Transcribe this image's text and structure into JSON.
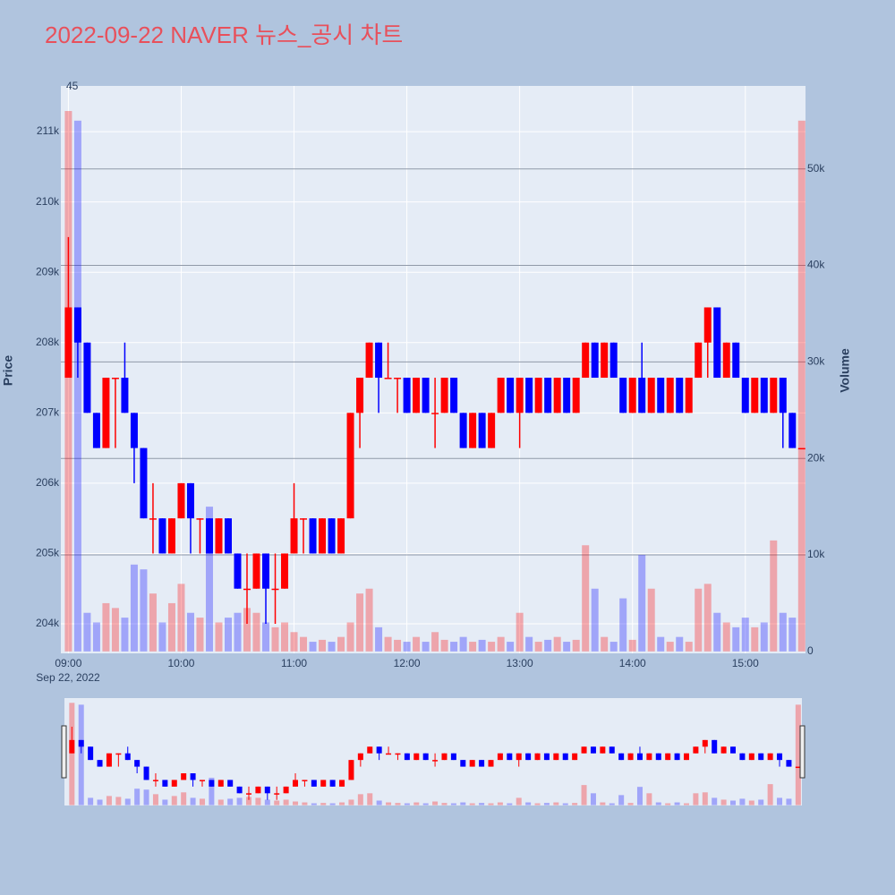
{
  "chart_data": {
    "type": "candlestick",
    "title": "2022-09-22 NAVER 뉴스_공시 차트",
    "y_label": "Price",
    "y2_label": "Volume",
    "annotation": "45",
    "x_date_label": "Sep 22, 2022",
    "increasing_color": "#ff0000",
    "decreasing_color": "#0000ff",
    "x": [
      "2022-09-22 09:00",
      "2022-09-22 09:05",
      "2022-09-22 09:10",
      "2022-09-22 09:15",
      "2022-09-22 09:20",
      "2022-09-22 09:25",
      "2022-09-22 09:30",
      "2022-09-22 09:35",
      "2022-09-22 09:40",
      "2022-09-22 09:45",
      "2022-09-22 09:50",
      "2022-09-22 09:55",
      "2022-09-22 10:00",
      "2022-09-22 10:05",
      "2022-09-22 10:10",
      "2022-09-22 10:15",
      "2022-09-22 10:20",
      "2022-09-22 10:25",
      "2022-09-22 10:30",
      "2022-09-22 10:35",
      "2022-09-22 10:40",
      "2022-09-22 10:45",
      "2022-09-22 10:50",
      "2022-09-22 10:55",
      "2022-09-22 11:00",
      "2022-09-22 11:05",
      "2022-09-22 11:10",
      "2022-09-22 11:15",
      "2022-09-22 11:20",
      "2022-09-22 11:25",
      "2022-09-22 11:30",
      "2022-09-22 11:35",
      "2022-09-22 11:40",
      "2022-09-22 11:45",
      "2022-09-22 11:50",
      "2022-09-22 11:55",
      "2022-09-22 12:00",
      "2022-09-22 12:05",
      "2022-09-22 12:10",
      "2022-09-22 12:15",
      "2022-09-22 12:20",
      "2022-09-22 12:25",
      "2022-09-22 12:30",
      "2022-09-22 12:35",
      "2022-09-22 12:40",
      "2022-09-22 12:45",
      "2022-09-22 12:50",
      "2022-09-22 12:55",
      "2022-09-22 13:00",
      "2022-09-22 13:05",
      "2022-09-22 13:10",
      "2022-09-22 13:15",
      "2022-09-22 13:20",
      "2022-09-22 13:25",
      "2022-09-22 13:30",
      "2022-09-22 13:35",
      "2022-09-22 13:40",
      "2022-09-22 13:45",
      "2022-09-22 13:50",
      "2022-09-22 13:55",
      "2022-09-22 14:00",
      "2022-09-22 14:05",
      "2022-09-22 14:10",
      "2022-09-22 14:15",
      "2022-09-22 14:20",
      "2022-09-22 14:25",
      "2022-09-22 14:30",
      "2022-09-22 14:35",
      "2022-09-22 14:40",
      "2022-09-22 14:45",
      "2022-09-22 14:50",
      "2022-09-22 14:55",
      "2022-09-22 15:00",
      "2022-09-22 15:05",
      "2022-09-22 15:10",
      "2022-09-22 15:15",
      "2022-09-22 15:20",
      "2022-09-22 15:25",
      "2022-09-22 15:30"
    ],
    "open": [
      207500,
      208500,
      208000,
      207000,
      206500,
      207500,
      207500,
      207000,
      206500,
      205500,
      205500,
      205000,
      205500,
      206000,
      205500,
      205500,
      205000,
      205500,
      205000,
      204500,
      204500,
      205000,
      204500,
      204500,
      205000,
      205500,
      205500,
      205000,
      205500,
      205000,
      205500,
      207000,
      207500,
      208000,
      207500,
      207500,
      207500,
      207000,
      207500,
      207000,
      207000,
      207500,
      207000,
      206500,
      207000,
      206500,
      207000,
      207500,
      207000,
      207500,
      207000,
      207500,
      207000,
      207500,
      207000,
      207500,
      208000,
      207500,
      208000,
      207500,
      207000,
      207500,
      207000,
      207500,
      207000,
      207500,
      207000,
      207500,
      208000,
      208500,
      207500,
      208000,
      207500,
      207000,
      207500,
      207000,
      207500,
      207000,
      206500
    ],
    "high": [
      209500,
      208500,
      208000,
      207000,
      207500,
      207500,
      208000,
      207000,
      206500,
      206000,
      205500,
      205500,
      206000,
      206000,
      205500,
      205500,
      205500,
      205500,
      205000,
      205000,
      205000,
      205000,
      205000,
      205000,
      206000,
      205500,
      205500,
      205500,
      205500,
      205500,
      207000,
      207500,
      208000,
      208000,
      208000,
      207500,
      207500,
      207500,
      207500,
      207500,
      207500,
      207500,
      207000,
      207000,
      207000,
      207000,
      207500,
      207500,
      207500,
      207500,
      207500,
      207500,
      207500,
      207500,
      207500,
      208000,
      208000,
      208000,
      208000,
      207500,
      207500,
      208000,
      207500,
      207500,
      207500,
      207500,
      207500,
      208000,
      208500,
      208500,
      208000,
      208000,
      207500,
      207500,
      207500,
      207500,
      207500,
      207000,
      206500
    ],
    "low": [
      207500,
      207500,
      207000,
      206500,
      206500,
      206500,
      207000,
      206000,
      205500,
      205000,
      205000,
      205000,
      205500,
      205000,
      205000,
      205000,
      205000,
      205000,
      204500,
      204000,
      204500,
      204000,
      204000,
      204500,
      205000,
      205000,
      205000,
      205000,
      205000,
      205000,
      205500,
      206500,
      207500,
      207000,
      207500,
      207000,
      207000,
      207000,
      207000,
      206500,
      207000,
      207000,
      206500,
      206500,
      206500,
      206500,
      207000,
      207000,
      206500,
      207000,
      207000,
      207000,
      207000,
      207000,
      207000,
      207500,
      207500,
      207500,
      207500,
      207000,
      207000,
      207000,
      207000,
      207000,
      207000,
      207000,
      207000,
      207500,
      207500,
      207500,
      207500,
      207500,
      207000,
      207000,
      207000,
      207000,
      206500,
      206500,
      206500
    ],
    "close": [
      208500,
      208000,
      207000,
      206500,
      207500,
      207500,
      207000,
      206500,
      205500,
      205500,
      205000,
      205500,
      206000,
      205500,
      205500,
      205000,
      205500,
      205000,
      204500,
      204500,
      205000,
      204500,
      204500,
      205000,
      205500,
      205500,
      205000,
      205500,
      205000,
      205500,
      207000,
      207500,
      208000,
      207500,
      207500,
      207500,
      207000,
      207500,
      207000,
      207000,
      207500,
      207000,
      206500,
      207000,
      206500,
      207000,
      207500,
      207000,
      207500,
      207000,
      207500,
      207000,
      207500,
      207000,
      207500,
      208000,
      207500,
      208000,
      207500,
      207000,
      207500,
      207000,
      207500,
      207000,
      207500,
      207000,
      207500,
      208000,
      208500,
      207500,
      208000,
      207500,
      207000,
      207500,
      207000,
      207500,
      207000,
      206500,
      206500
    ],
    "volume": [
      56000,
      55000,
      4000,
      3000,
      5000,
      4500,
      3500,
      9000,
      8500,
      6000,
      3000,
      5000,
      7000,
      4000,
      3500,
      15000,
      3000,
      3500,
      4000,
      4500,
      4000,
      3000,
      2500,
      3000,
      2000,
      1500,
      1000,
      1200,
      1000,
      1500,
      3000,
      6000,
      6500,
      2500,
      1500,
      1200,
      1000,
      1500,
      1000,
      2000,
      1200,
      1000,
      1500,
      1000,
      1200,
      1000,
      1500,
      1000,
      4000,
      1500,
      1000,
      1200,
      1500,
      1000,
      1200,
      11000,
      6500,
      1500,
      1000,
      5500,
      1200,
      10000,
      6500,
      1500,
      1000,
      1500,
      1000,
      6500,
      7000,
      4000,
      3000,
      2500,
      3500,
      2500,
      3000,
      11500,
      4000,
      3500,
      55000
    ],
    "xlim": [
      "2022-09-22 08:56",
      "2022-09-22 15:32"
    ],
    "xticks": [
      {
        "value": "2022-09-22 09:00",
        "label": "09:00"
      },
      {
        "value": "2022-09-22 10:00",
        "label": "10:00"
      },
      {
        "value": "2022-09-22 11:00",
        "label": "11:00"
      },
      {
        "value": "2022-09-22 12:00",
        "label": "12:00"
      },
      {
        "value": "2022-09-22 13:00",
        "label": "13:00"
      },
      {
        "value": "2022-09-22 14:00",
        "label": "14:00"
      },
      {
        "value": "2022-09-22 15:00",
        "label": "15:00"
      }
    ],
    "ylim": [
      203580,
      211650
    ],
    "yticks": [
      {
        "value": 204000,
        "label": "204k"
      },
      {
        "value": 205000,
        "label": "205k"
      },
      {
        "value": 206000,
        "label": "206k"
      },
      {
        "value": 207000,
        "label": "207k"
      },
      {
        "value": 208000,
        "label": "208k"
      },
      {
        "value": 209000,
        "label": "209k"
      },
      {
        "value": 210000,
        "label": "210k"
      },
      {
        "value": 211000,
        "label": "211k"
      }
    ],
    "y2lim": [
      -200,
      58600
    ],
    "y2ticks": [
      0,
      {
        "value": 10000,
        "label": "10k"
      },
      {
        "value": 20000,
        "label": "20k"
      },
      {
        "value": 30000,
        "label": "30k"
      },
      {
        "value": 40000,
        "label": "40k"
      },
      {
        "value": 50000,
        "label": "50k"
      }
    ],
    "grid": true,
    "rangeslider": true
  }
}
